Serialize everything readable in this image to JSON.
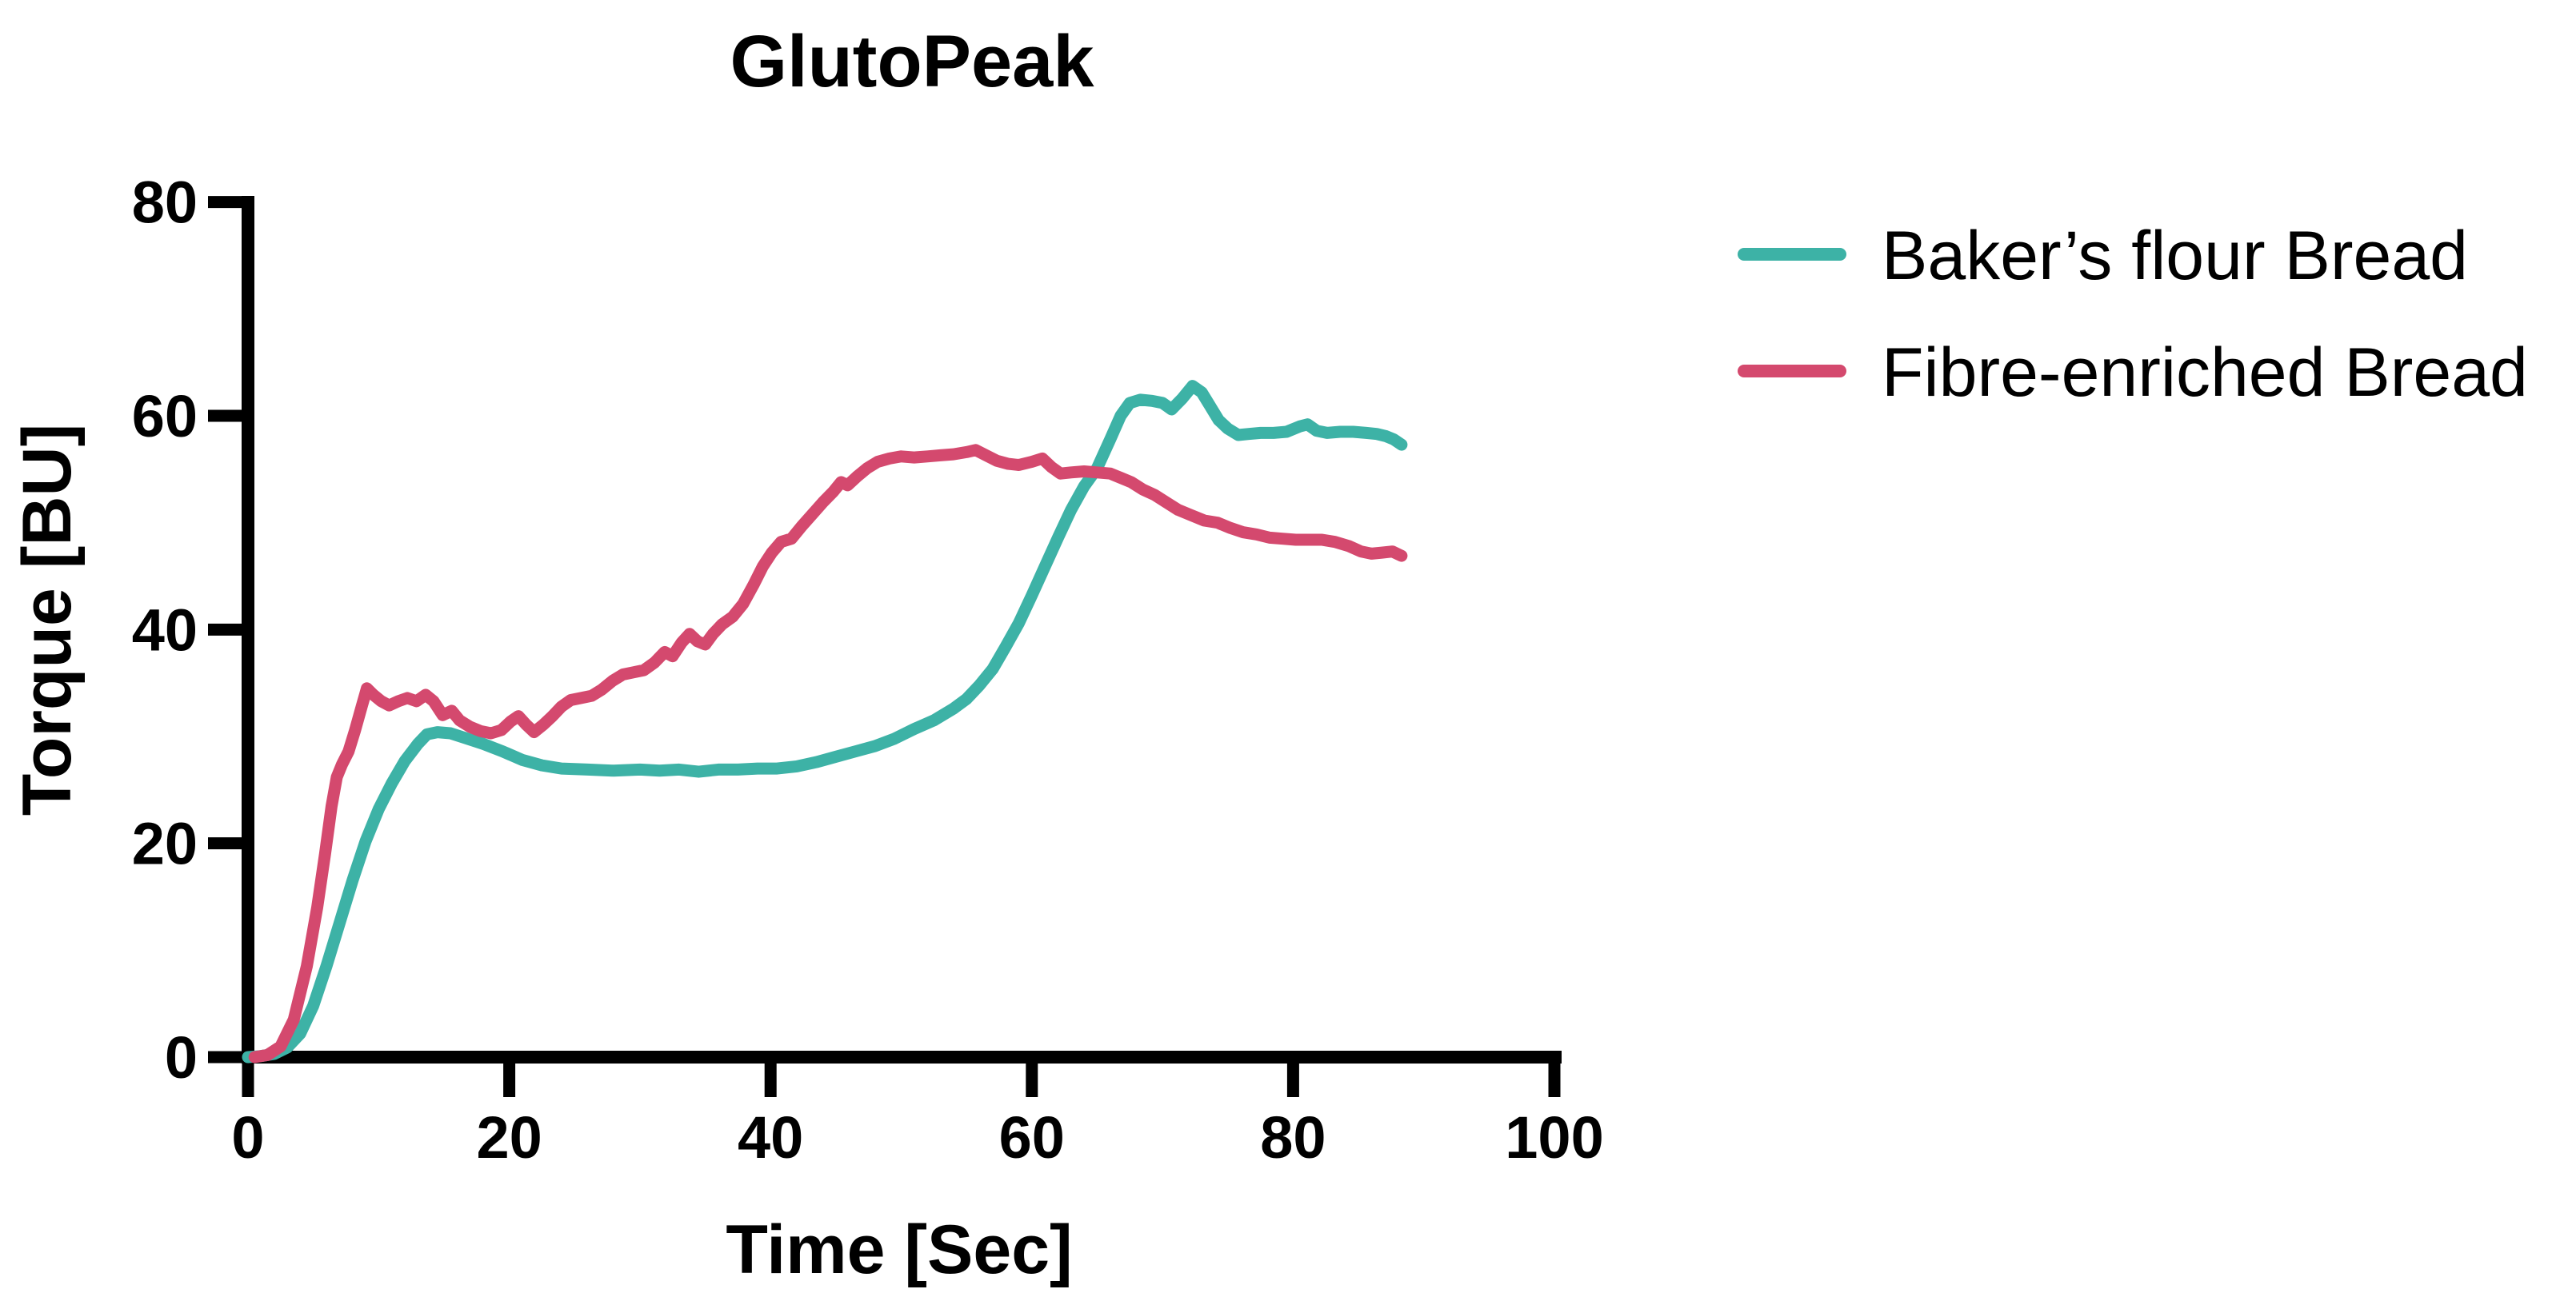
{
  "colors": {
    "background": "#ffffff",
    "axis": "#000000",
    "text": "#000000",
    "baker_teal": "#3DB2A6",
    "fibre_pink": "#D4496E"
  },
  "chart_data": {
    "type": "line",
    "title": "GlutoPeak",
    "xlabel": "Time [Sec]",
    "ylabel": "Torque [BU]",
    "xlim": [
      0,
      100
    ],
    "ylim": [
      0,
      80
    ],
    "xticks": [
      0,
      20,
      40,
      60,
      80,
      100
    ],
    "yticks": [
      0,
      20,
      40,
      60,
      80
    ],
    "grid": false,
    "legend_position": "right",
    "series": [
      {
        "name": "Baker’s flour Bread",
        "color": "#3DB2A6",
        "points": [
          [
            0,
            0
          ],
          [
            1,
            0.1
          ],
          [
            2,
            0.3
          ],
          [
            3,
            0.9
          ],
          [
            4,
            2.2
          ],
          [
            5,
            4.8
          ],
          [
            6,
            8.5
          ],
          [
            7,
            12.5
          ],
          [
            8,
            16.5
          ],
          [
            9,
            20.2
          ],
          [
            10,
            23.2
          ],
          [
            11,
            25.6
          ],
          [
            12,
            27.7
          ],
          [
            13,
            29.3
          ],
          [
            13.7,
            30.2
          ],
          [
            14.5,
            30.4
          ],
          [
            15.5,
            30.3
          ],
          [
            16.5,
            29.9
          ],
          [
            18,
            29.3
          ],
          [
            19.5,
            28.6
          ],
          [
            21,
            27.8
          ],
          [
            22.5,
            27.3
          ],
          [
            24,
            27.0
          ],
          [
            26,
            26.9
          ],
          [
            28,
            26.8
          ],
          [
            30,
            26.9
          ],
          [
            31.5,
            26.8
          ],
          [
            33,
            26.9
          ],
          [
            34.5,
            26.7
          ],
          [
            36,
            26.9
          ],
          [
            37.5,
            26.9
          ],
          [
            39,
            27.0
          ],
          [
            40.5,
            27.0
          ],
          [
            42,
            27.2
          ],
          [
            43.5,
            27.6
          ],
          [
            45,
            28.1
          ],
          [
            46.5,
            28.6
          ],
          [
            48,
            29.1
          ],
          [
            49.5,
            29.8
          ],
          [
            51,
            30.7
          ],
          [
            52.5,
            31.5
          ],
          [
            54,
            32.6
          ],
          [
            55,
            33.5
          ],
          [
            56,
            34.8
          ],
          [
            57,
            36.3
          ],
          [
            58,
            38.4
          ],
          [
            59,
            40.6
          ],
          [
            60,
            43.2
          ],
          [
            61,
            45.9
          ],
          [
            62,
            48.6
          ],
          [
            63,
            51.2
          ],
          [
            64,
            53.4
          ],
          [
            65,
            55.1
          ],
          [
            66,
            57.8
          ],
          [
            66.8,
            60.0
          ],
          [
            67.5,
            61.2
          ],
          [
            68.3,
            61.5
          ],
          [
            69.2,
            61.4
          ],
          [
            70,
            61.2
          ],
          [
            70.7,
            60.6
          ],
          [
            71.5,
            61.6
          ],
          [
            72.3,
            62.8
          ],
          [
            73,
            62.2
          ],
          [
            73.6,
            61.0
          ],
          [
            74.3,
            59.6
          ],
          [
            75,
            58.8
          ],
          [
            75.8,
            58.2
          ],
          [
            76.6,
            58.3
          ],
          [
            77.5,
            58.4
          ],
          [
            78.5,
            58.4
          ],
          [
            79.5,
            58.5
          ],
          [
            80.5,
            59.0
          ],
          [
            81.1,
            59.2
          ],
          [
            81.8,
            58.6
          ],
          [
            82.6,
            58.4
          ],
          [
            83.6,
            58.5
          ],
          [
            84.6,
            58.5
          ],
          [
            85.6,
            58.4
          ],
          [
            86.4,
            58.3
          ],
          [
            87.1,
            58.1
          ],
          [
            87.7,
            57.8
          ],
          [
            88.3,
            57.3
          ]
        ]
      },
      {
        "name": "Fibre-enriched Bread",
        "color": "#D4496E",
        "points": [
          [
            0.5,
            0
          ],
          [
            1.5,
            0.2
          ],
          [
            2.5,
            1.0
          ],
          [
            3.5,
            3.5
          ],
          [
            4.5,
            8.5
          ],
          [
            5.3,
            14
          ],
          [
            5.9,
            19
          ],
          [
            6.4,
            23.5
          ],
          [
            6.8,
            26.2
          ],
          [
            7.2,
            27.4
          ],
          [
            7.7,
            28.6
          ],
          [
            8.2,
            30.6
          ],
          [
            8.7,
            32.8
          ],
          [
            9.1,
            34.5
          ],
          [
            9.6,
            33.9
          ],
          [
            10.2,
            33.3
          ],
          [
            10.8,
            32.9
          ],
          [
            11.5,
            33.3
          ],
          [
            12.2,
            33.6
          ],
          [
            12.9,
            33.3
          ],
          [
            13.6,
            33.9
          ],
          [
            14.2,
            33.3
          ],
          [
            14.9,
            32.0
          ],
          [
            15.6,
            32.4
          ],
          [
            16.2,
            31.5
          ],
          [
            17,
            30.9
          ],
          [
            17.8,
            30.5
          ],
          [
            18.6,
            30.3
          ],
          [
            19.4,
            30.6
          ],
          [
            20.1,
            31.4
          ],
          [
            20.7,
            31.9
          ],
          [
            21.3,
            31.1
          ],
          [
            21.9,
            30.4
          ],
          [
            22.6,
            31.1
          ],
          [
            23.3,
            31.9
          ],
          [
            24,
            32.8
          ],
          [
            24.7,
            33.4
          ],
          [
            25.5,
            33.6
          ],
          [
            26.3,
            33.8
          ],
          [
            27.1,
            34.4
          ],
          [
            27.9,
            35.2
          ],
          [
            28.7,
            35.8
          ],
          [
            29.5,
            36.0
          ],
          [
            30.3,
            36.2
          ],
          [
            31.1,
            36.9
          ],
          [
            31.9,
            37.9
          ],
          [
            32.5,
            37.5
          ],
          [
            33.2,
            38.8
          ],
          [
            33.8,
            39.6
          ],
          [
            34.4,
            38.9
          ],
          [
            35,
            38.6
          ],
          [
            35.6,
            39.6
          ],
          [
            36.3,
            40.5
          ],
          [
            37.1,
            41.2
          ],
          [
            37.9,
            42.4
          ],
          [
            38.7,
            44.2
          ],
          [
            39.4,
            45.9
          ],
          [
            40.1,
            47.2
          ],
          [
            40.8,
            48.2
          ],
          [
            41.6,
            48.5
          ],
          [
            42.4,
            49.7
          ],
          [
            43.2,
            50.8
          ],
          [
            44,
            51.9
          ],
          [
            44.8,
            52.9
          ],
          [
            45.4,
            53.8
          ],
          [
            45.9,
            53.5
          ],
          [
            46.6,
            54.3
          ],
          [
            47.4,
            55.1
          ],
          [
            48.2,
            55.7
          ],
          [
            49.1,
            56.0
          ],
          [
            50,
            56.2
          ],
          [
            51,
            56.1
          ],
          [
            52,
            56.2
          ],
          [
            53,
            56.3
          ],
          [
            54,
            56.4
          ],
          [
            55,
            56.6
          ],
          [
            55.7,
            56.8
          ],
          [
            56.5,
            56.3
          ],
          [
            57.3,
            55.8
          ],
          [
            58.2,
            55.5
          ],
          [
            59,
            55.4
          ],
          [
            60,
            55.7
          ],
          [
            60.8,
            56.0
          ],
          [
            61.5,
            55.2
          ],
          [
            62.2,
            54.6
          ],
          [
            63,
            54.7
          ],
          [
            64,
            54.8
          ],
          [
            65,
            54.7
          ],
          [
            66,
            54.6
          ],
          [
            66.8,
            54.2
          ],
          [
            67.6,
            53.8
          ],
          [
            68.5,
            53.1
          ],
          [
            69.4,
            52.6
          ],
          [
            70.3,
            51.9
          ],
          [
            71.2,
            51.2
          ],
          [
            72.2,
            50.7
          ],
          [
            73.2,
            50.2
          ],
          [
            74.2,
            50.0
          ],
          [
            75.2,
            49.5
          ],
          [
            76.2,
            49.1
          ],
          [
            77.2,
            48.9
          ],
          [
            78.2,
            48.6
          ],
          [
            79.2,
            48.5
          ],
          [
            80.2,
            48.4
          ],
          [
            81.2,
            48.4
          ],
          [
            82.2,
            48.4
          ],
          [
            83.2,
            48.2
          ],
          [
            84.3,
            47.8
          ],
          [
            85.2,
            47.3
          ],
          [
            86,
            47.1
          ],
          [
            86.8,
            47.2
          ],
          [
            87.6,
            47.3
          ],
          [
            88.3,
            46.9
          ]
        ]
      }
    ]
  }
}
